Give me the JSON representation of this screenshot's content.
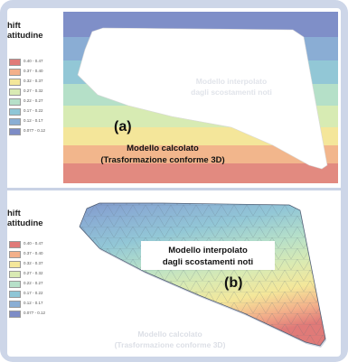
{
  "legend": {
    "title_line1": "hift",
    "title_line2": "atitudine",
    "colors": [
      "#e07a78",
      "#f3b08a",
      "#f4e79a",
      "#d9eab3",
      "#b6e0c9",
      "#8fc6d6",
      "#8aaed4",
      "#7d8cc6"
    ],
    "labels": [
      "0.40 - 0.47",
      "0.37 - 0.40",
      "0.32 - 0.37",
      "0.27 - 0.32",
      "0.22 - 0.27",
      "0.17 - 0.22",
      "0.12 - 0.17",
      "0.077 - 0.12"
    ]
  },
  "panel_a": {
    "letter": "(a)",
    "faded_label_line1": "Modello interpolato",
    "faded_label_line2": "dagli scostamenti noti",
    "label_line1": "Modello calcolato",
    "label_line2": "(Trasformazione conforme 3D)"
  },
  "panel_b": {
    "letter": "(b)",
    "label_line1": "Modello interpolato",
    "label_line2": "dagli scostamenti  noti",
    "faded_label_line1": "Modello calcolato",
    "faded_label_line2": "(Trasformazione conforme 3D)"
  }
}
